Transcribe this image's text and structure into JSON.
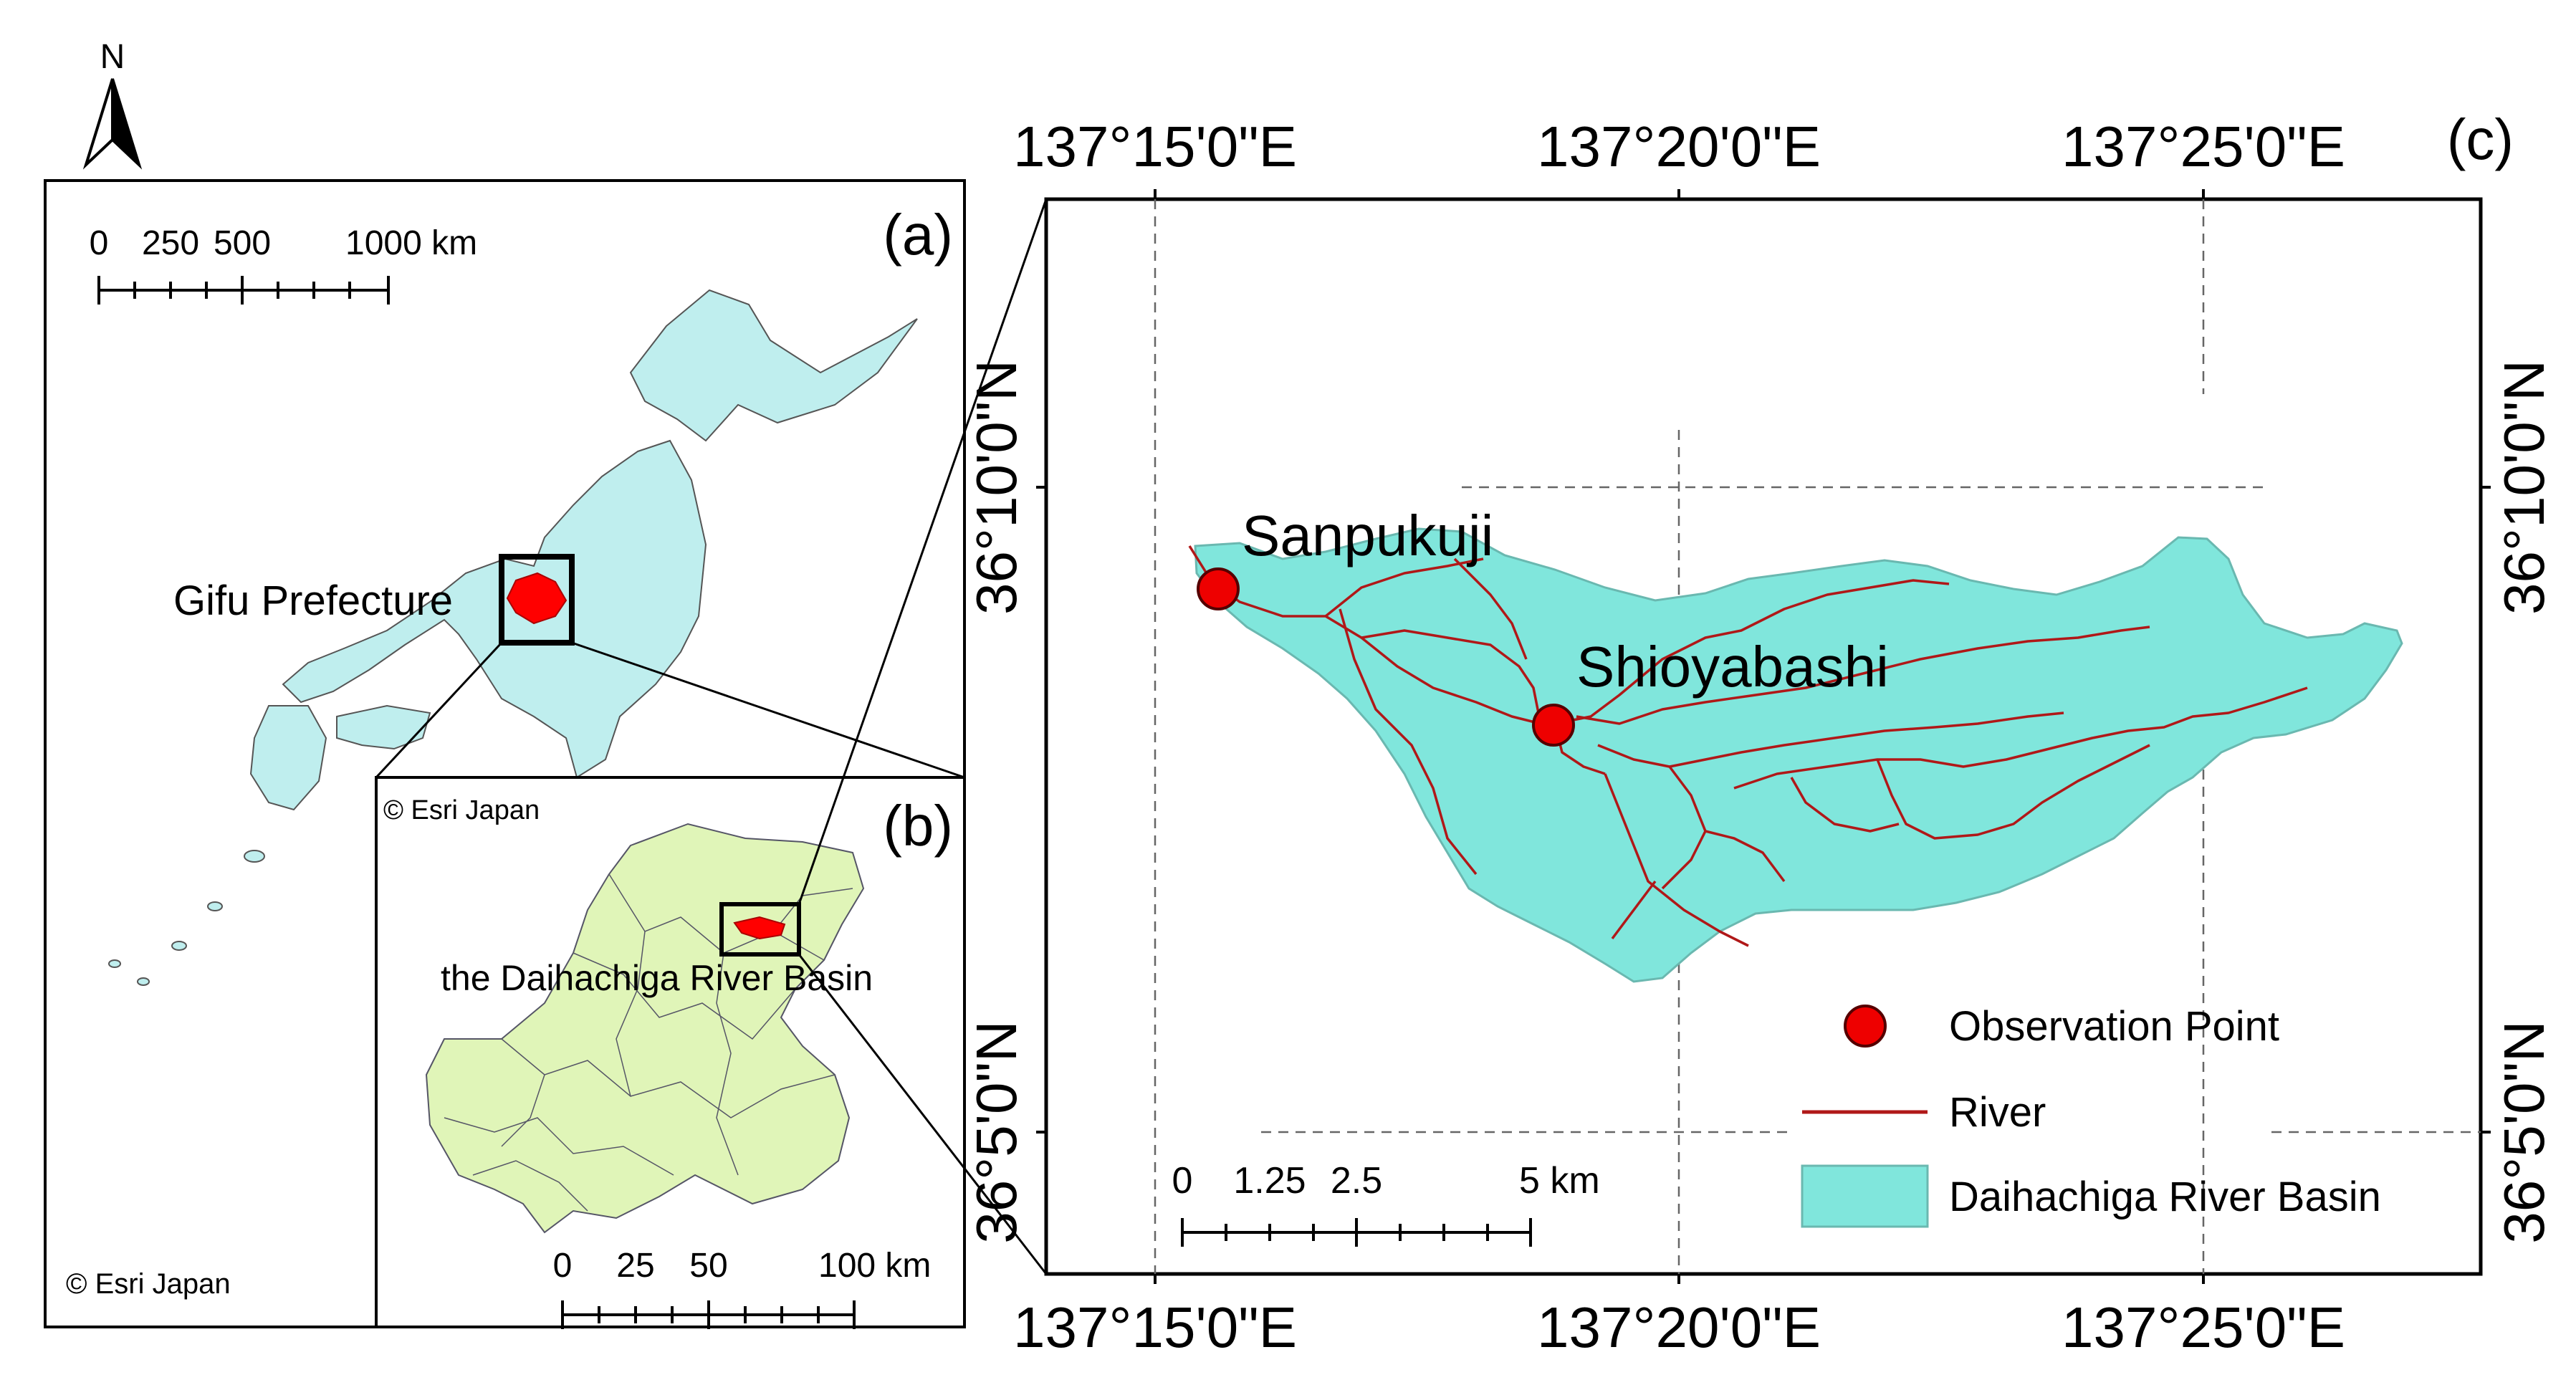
{
  "north_arrow": {
    "label": "N"
  },
  "panel_a": {
    "letter": "(a)",
    "scalebar": {
      "ticks": [
        "0",
        "250",
        "500",
        "1000 km"
      ]
    },
    "place_label": "Gifu Prefecture",
    "credit": "© Esri Japan",
    "colors": {
      "land": "#bfeeee",
      "highlight": "#ff0000"
    }
  },
  "panel_b": {
    "letter": "(b)",
    "credit": "© Esri Japan",
    "place_label": "the Daihachiga River Basin",
    "scalebar": {
      "ticks": [
        "0",
        "25",
        "50",
        "100 km"
      ]
    },
    "colors": {
      "land": "#e0f5b8",
      "highlight": "#ff0000"
    }
  },
  "panel_c": {
    "letter": "(c)",
    "top_labels": [
      "137°15'0\"E",
      "137°20'0\"E",
      "137°25'0\"E"
    ],
    "bottom_labels": [
      "137°15'0\"E",
      "137°20'0\"E",
      "137°25'0\"E"
    ],
    "left_labels": [
      "36°10'0\"N",
      "36°5'0\"N"
    ],
    "right_labels": [
      "36°10'0\"N",
      "36°5'0\"N"
    ],
    "stations": [
      {
        "name": "Sanpukuji"
      },
      {
        "name": "Shioyabashi"
      }
    ],
    "scalebar": {
      "ticks": [
        "0",
        "1.25",
        "2.5",
        "5 km"
      ]
    },
    "legend": {
      "point": "Observation Point",
      "river": "River",
      "basin": "Daihachiga River Basin"
    },
    "colors": {
      "basin": "#80e6dc",
      "river": "#b01818",
      "point": "#ee0000"
    }
  }
}
